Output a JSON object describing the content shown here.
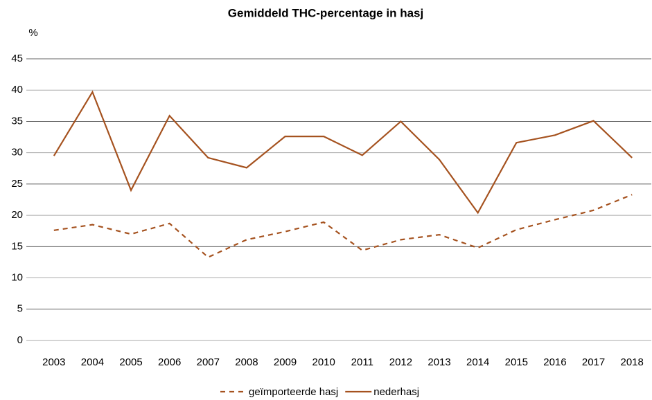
{
  "chart_data": {
    "type": "line",
    "title": "Gemiddeld THC-percentage in hasj",
    "y_label": "%",
    "categories": [
      "2003",
      "2004",
      "2005",
      "2006",
      "2007",
      "2008",
      "2009",
      "2010",
      "2011",
      "2012",
      "2013",
      "2014",
      "2015",
      "2016",
      "2017",
      "2018"
    ],
    "series": [
      {
        "name": "geïmporteerde hasj",
        "color": "#a5521f",
        "dashed": true,
        "values": [
          17.6,
          18.5,
          17.0,
          18.7,
          13.3,
          16.1,
          17.4,
          18.9,
          14.4,
          16.1,
          16.9,
          14.8,
          17.7,
          19.3,
          20.8,
          23.3
        ]
      },
      {
        "name": "nederhasj",
        "color": "#a5521f",
        "dashed": false,
        "values": [
          29.5,
          39.7,
          24.0,
          35.9,
          29.2,
          27.6,
          32.6,
          32.6,
          29.6,
          35.0,
          28.9,
          20.4,
          31.6,
          32.8,
          35.1,
          29.2
        ]
      }
    ],
    "ylim": [
      0,
      45
    ],
    "yticks": [
      0,
      5,
      10,
      15,
      20,
      25,
      30,
      35,
      40,
      45
    ],
    "grid": true
  }
}
